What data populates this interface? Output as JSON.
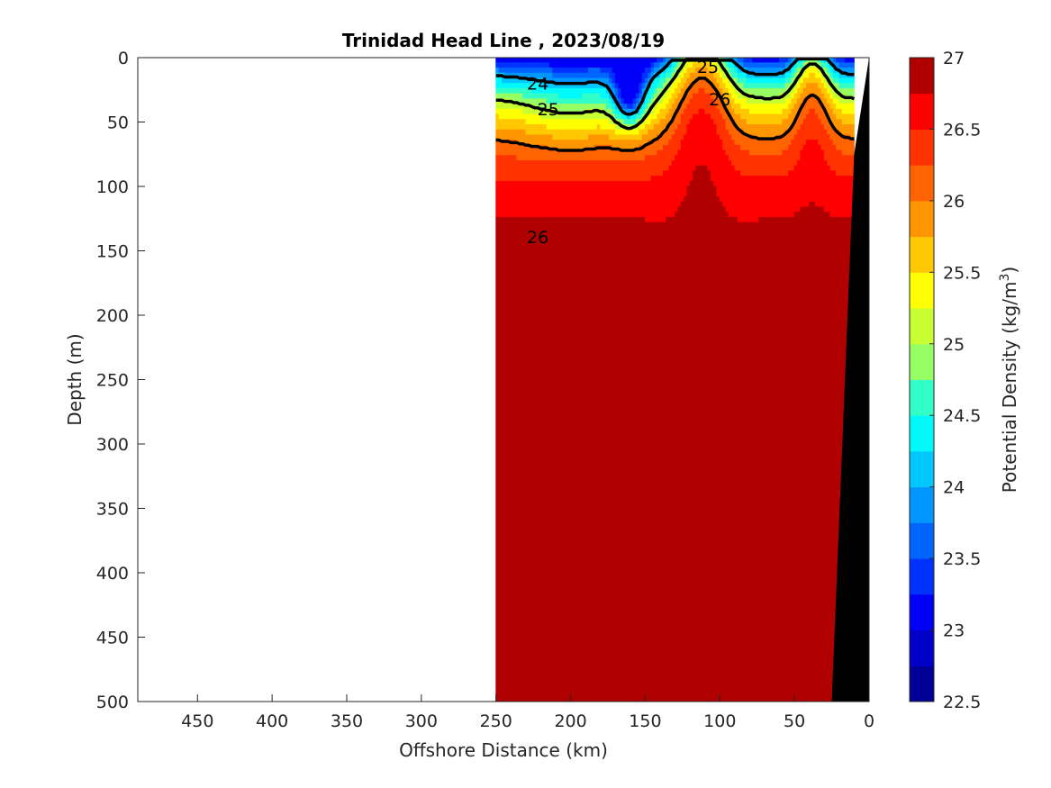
{
  "chart_data": {
    "type": "heatmap",
    "title": "Trinidad Head Line , 2023/08/19",
    "xlabel": "Offshore Distance (km)",
    "ylabel": "Depth (m)",
    "xlim": [
      490,
      0
    ],
    "ylim": [
      0,
      500
    ],
    "x_reversed": true,
    "y_reversed": true,
    "x_ticks": [
      450,
      400,
      350,
      300,
      250,
      200,
      150,
      100,
      50,
      0
    ],
    "y_ticks": [
      0,
      50,
      100,
      150,
      200,
      250,
      300,
      350,
      400,
      450,
      500
    ],
    "data_x_range": [
      250,
      10
    ],
    "colorbar": {
      "label": "Potential Density (kg/m³)",
      "label_main": "Potential Density (kg/m",
      "label_sup": "3",
      "label_end": ")",
      "min": 22.5,
      "max": 27,
      "ticks": [
        27,
        26.5,
        26,
        25.5,
        25,
        24.5,
        24,
        23.5,
        23,
        22.5
      ],
      "tick_labels": [
        "27",
        "26.5",
        "26",
        "25.5",
        "25",
        "24.5",
        "24",
        "23.5",
        "23",
        "22.5"
      ],
      "levels": [
        {
          "from": 22.5,
          "to": 22.75,
          "color": "#000096"
        },
        {
          "from": 22.75,
          "to": 23.0,
          "color": "#0000c8"
        },
        {
          "from": 23.0,
          "to": 23.25,
          "color": "#0000fa"
        },
        {
          "from": 23.25,
          "to": 23.5,
          "color": "#0032ff"
        },
        {
          "from": 23.5,
          "to": 23.75,
          "color": "#0064ff"
        },
        {
          "from": 23.75,
          "to": 24.0,
          "color": "#0096ff"
        },
        {
          "from": 24.0,
          "to": 24.25,
          "color": "#00c8ff"
        },
        {
          "from": 24.25,
          "to": 24.5,
          "color": "#00fafa"
        },
        {
          "from": 24.5,
          "to": 24.75,
          "color": "#32ffc8"
        },
        {
          "from": 24.75,
          "to": 25.0,
          "color": "#96ff64"
        },
        {
          "from": 25.0,
          "to": 25.25,
          "color": "#c8ff32"
        },
        {
          "from": 25.25,
          "to": 25.5,
          "color": "#ffff00"
        },
        {
          "from": 25.5,
          "to": 25.75,
          "color": "#ffc800"
        },
        {
          "from": 25.75,
          "to": 26.0,
          "color": "#ff9600"
        },
        {
          "from": 26.0,
          "to": 26.25,
          "color": "#ff6400"
        },
        {
          "from": 26.25,
          "to": 26.5,
          "color": "#ff3200"
        },
        {
          "from": 26.5,
          "to": 26.75,
          "color": "#ff0000"
        },
        {
          "from": 26.75,
          "to": 27.0,
          "color": "#b00000"
        }
      ]
    },
    "contour_labels": [
      {
        "text": "24",
        "x": 222,
        "y": 20
      },
      {
        "text": "25",
        "x": 215,
        "y": 40
      },
      {
        "text": "25",
        "x": 108,
        "y": 7
      },
      {
        "text": "26",
        "x": 100,
        "y": 32
      },
      {
        "text": "26",
        "x": 222,
        "y": 139
      }
    ],
    "bottom_color": "#000000"
  }
}
